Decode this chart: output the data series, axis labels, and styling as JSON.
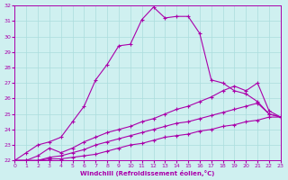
{
  "xlabel": "Windchill (Refroidissement éolien,°C)",
  "xlim": [
    0,
    23
  ],
  "ylim": [
    22,
    32
  ],
  "yticks": [
    22,
    23,
    24,
    25,
    26,
    27,
    28,
    29,
    30,
    31,
    32
  ],
  "xticks": [
    0,
    1,
    2,
    3,
    4,
    5,
    6,
    7,
    8,
    9,
    10,
    11,
    12,
    13,
    14,
    15,
    16,
    17,
    18,
    19,
    20,
    21,
    22,
    23
  ],
  "bg_color": "#cff0f0",
  "line_color": "#aa00aa",
  "grid_color": "#aadddd",
  "lines": [
    {
      "x": [
        0,
        1,
        2,
        3,
        4,
        5,
        6,
        7,
        8,
        9,
        10,
        11,
        12,
        13,
        14,
        15,
        16,
        17,
        18,
        19,
        20,
        21,
        22,
        23
      ],
      "y": [
        22.0,
        22.5,
        23.0,
        23.2,
        23.5,
        24.5,
        25.5,
        27.2,
        28.2,
        29.4,
        29.5,
        31.1,
        31.9,
        31.2,
        31.3,
        31.3,
        30.2,
        27.2,
        27.0,
        26.5,
        26.3,
        25.8,
        25.0,
        24.8
      ]
    },
    {
      "x": [
        0,
        1,
        2,
        3,
        4,
        5,
        6,
        7,
        8,
        9,
        10,
        11,
        12,
        13,
        14,
        15,
        16,
        17,
        18,
        19,
        20,
        21,
        22,
        23
      ],
      "y": [
        22.0,
        22.0,
        22.3,
        22.8,
        22.5,
        22.8,
        23.2,
        23.5,
        23.8,
        24.0,
        24.2,
        24.5,
        24.7,
        25.0,
        25.3,
        25.5,
        25.8,
        26.1,
        26.5,
        26.8,
        26.5,
        27.0,
        25.2,
        24.8
      ]
    },
    {
      "x": [
        0,
        1,
        2,
        3,
        4,
        5,
        6,
        7,
        8,
        9,
        10,
        11,
        12,
        13,
        14,
        15,
        16,
        17,
        18,
        19,
        20,
        21,
        22,
        23
      ],
      "y": [
        22.0,
        22.0,
        22.0,
        22.2,
        22.3,
        22.5,
        22.7,
        23.0,
        23.2,
        23.4,
        23.6,
        23.8,
        24.0,
        24.2,
        24.4,
        24.5,
        24.7,
        24.9,
        25.1,
        25.3,
        25.5,
        25.7,
        25.0,
        24.8
      ]
    },
    {
      "x": [
        0,
        1,
        2,
        3,
        4,
        5,
        6,
        7,
        8,
        9,
        10,
        11,
        12,
        13,
        14,
        15,
        16,
        17,
        18,
        19,
        20,
        21,
        22,
        23
      ],
      "y": [
        22.0,
        22.0,
        22.0,
        22.1,
        22.1,
        22.2,
        22.3,
        22.4,
        22.6,
        22.8,
        23.0,
        23.1,
        23.3,
        23.5,
        23.6,
        23.7,
        23.9,
        24.0,
        24.2,
        24.3,
        24.5,
        24.6,
        24.8,
        24.8
      ]
    }
  ]
}
